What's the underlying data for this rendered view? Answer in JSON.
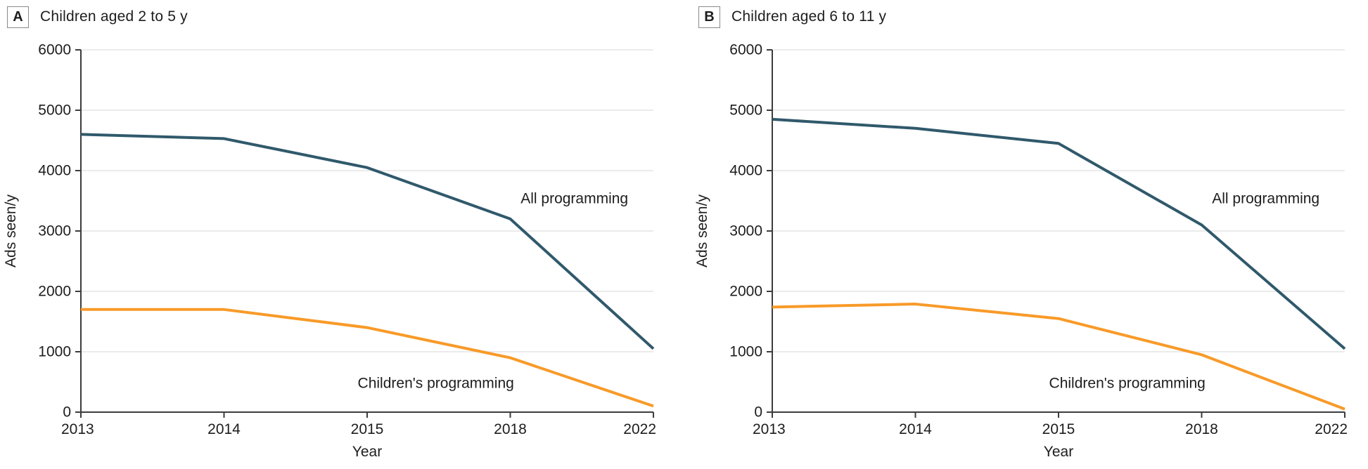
{
  "figure": {
    "y_axis_label": "Ads seen/y",
    "x_axis_label": "Year",
    "colors": {
      "all_programming": "#30596b",
      "childrens_programming": "#f89a28",
      "gridline": "#ebebeb",
      "axis": "#3c3c3c",
      "text": "#1d1d1d"
    }
  },
  "chart_data": [
    {
      "type": "line",
      "panel": "A",
      "title": "Children aged 2 to 5 y",
      "xlabel": "Year",
      "ylabel": "Ads seen/y",
      "categories": [
        "2013",
        "2014",
        "2015",
        "2018",
        "2022"
      ],
      "ylim": [
        0,
        6000
      ],
      "ytick_step": 1000,
      "grid": true,
      "legend_position": "inline-annotations",
      "series": [
        {
          "name": "All programming",
          "color": "#30596b",
          "values": [
            4600,
            4530,
            4050,
            3200,
            1050
          ]
        },
        {
          "name": "Children's programming",
          "color": "#f89a28",
          "values": [
            1700,
            1700,
            1400,
            900,
            100
          ]
        }
      ]
    },
    {
      "type": "line",
      "panel": "B",
      "title": "Children aged 6 to 11 y",
      "xlabel": "Year",
      "ylabel": "Ads seen/y",
      "categories": [
        "2013",
        "2014",
        "2015",
        "2018",
        "2022"
      ],
      "ylim": [
        0,
        6000
      ],
      "ytick_step": 1000,
      "grid": true,
      "legend_position": "inline-annotations",
      "series": [
        {
          "name": "All programming",
          "color": "#30596b",
          "values": [
            4850,
            4700,
            4450,
            3100,
            1050
          ]
        },
        {
          "name": "Children's programming",
          "color": "#f89a28",
          "values": [
            1740,
            1790,
            1550,
            950,
            50
          ]
        }
      ]
    }
  ]
}
